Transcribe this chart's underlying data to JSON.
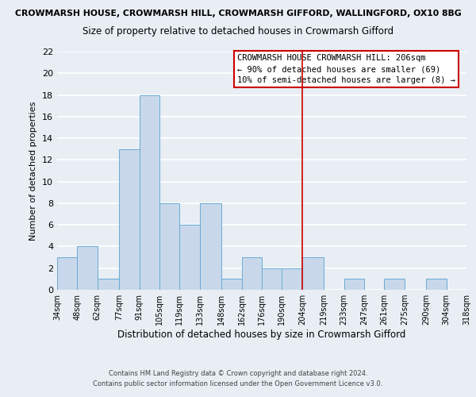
{
  "title_top": "CROWMARSH HOUSE, CROWMARSH HILL, CROWMARSH GIFFORD, WALLINGFORD, OX10 8BG",
  "title_main": "Size of property relative to detached houses in Crowmarsh Gifford",
  "xlabel": "Distribution of detached houses by size in Crowmarsh Gifford",
  "ylabel": "Number of detached properties",
  "bin_edges": [
    34,
    48,
    62,
    77,
    91,
    105,
    119,
    133,
    148,
    162,
    176,
    190,
    204,
    219,
    233,
    247,
    261,
    275,
    290,
    304,
    318
  ],
  "bin_labels": [
    "34sqm",
    "48sqm",
    "62sqm",
    "77sqm",
    "91sqm",
    "105sqm",
    "119sqm",
    "133sqm",
    "148sqm",
    "162sqm",
    "176sqm",
    "190sqm",
    "204sqm",
    "219sqm",
    "233sqm",
    "247sqm",
    "261sqm",
    "275sqm",
    "290sqm",
    "304sqm",
    "318sqm"
  ],
  "counts": [
    3,
    4,
    1,
    13,
    18,
    8,
    6,
    8,
    1,
    3,
    2,
    2,
    3,
    0,
    1,
    0,
    1,
    0,
    1,
    0
  ],
  "bar_color": "#c8d8ea",
  "bar_edgecolor": "#6aaad4",
  "vline_x": 204,
  "vline_color": "#cc0000",
  "annotation_line1": "CROWMARSH HOUSE CROWMARSH HILL: 206sqm",
  "annotation_line2": "← 90% of detached houses are smaller (69)",
  "annotation_line3": "10% of semi-detached houses are larger (8) →",
  "ylim": [
    0,
    22
  ],
  "yticks": [
    0,
    2,
    4,
    6,
    8,
    10,
    12,
    14,
    16,
    18,
    20,
    22
  ],
  "footer_line1": "Contains HM Land Registry data © Crown copyright and database right 2024.",
  "footer_line2": "Contains public sector information licensed under the Open Government Licence v3.0.",
  "background_color": "#e8eef4",
  "grid_color": "#ffffff"
}
